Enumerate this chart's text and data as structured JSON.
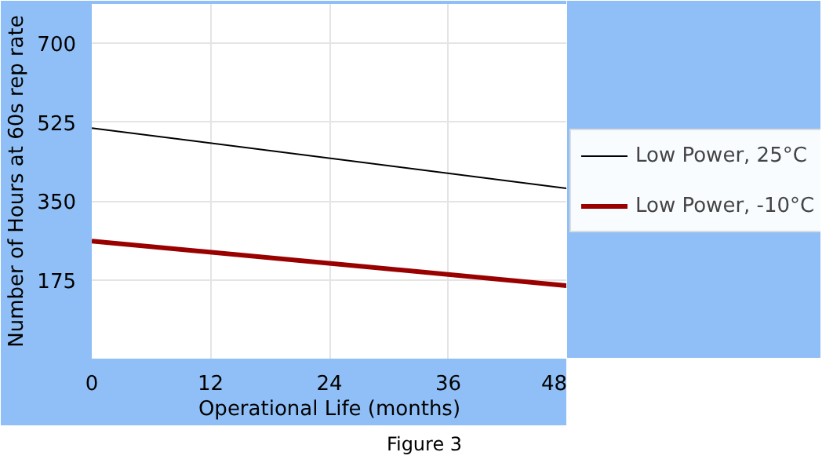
{
  "chart_data": {
    "type": "line",
    "xlabel": "Operational Life (months)",
    "ylabel": "Number of Hours at 60s rep rate",
    "x": [
      0,
      48
    ],
    "xlim": [
      0,
      48
    ],
    "xticks": [
      0,
      12,
      24,
      36,
      48
    ],
    "ylim": [
      0,
      787.5
    ],
    "yticks": [
      175,
      350,
      525,
      700
    ],
    "series": [
      {
        "name": "Low Power, 25°C",
        "color": "#000000",
        "values": [
          512,
          378
        ]
      },
      {
        "name": "Low Power, -10°C",
        "color": "#990000",
        "values": [
          261,
          162
        ]
      }
    ],
    "grid": true,
    "legend": "right",
    "annotations": [
      "Figure 3"
    ]
  }
}
